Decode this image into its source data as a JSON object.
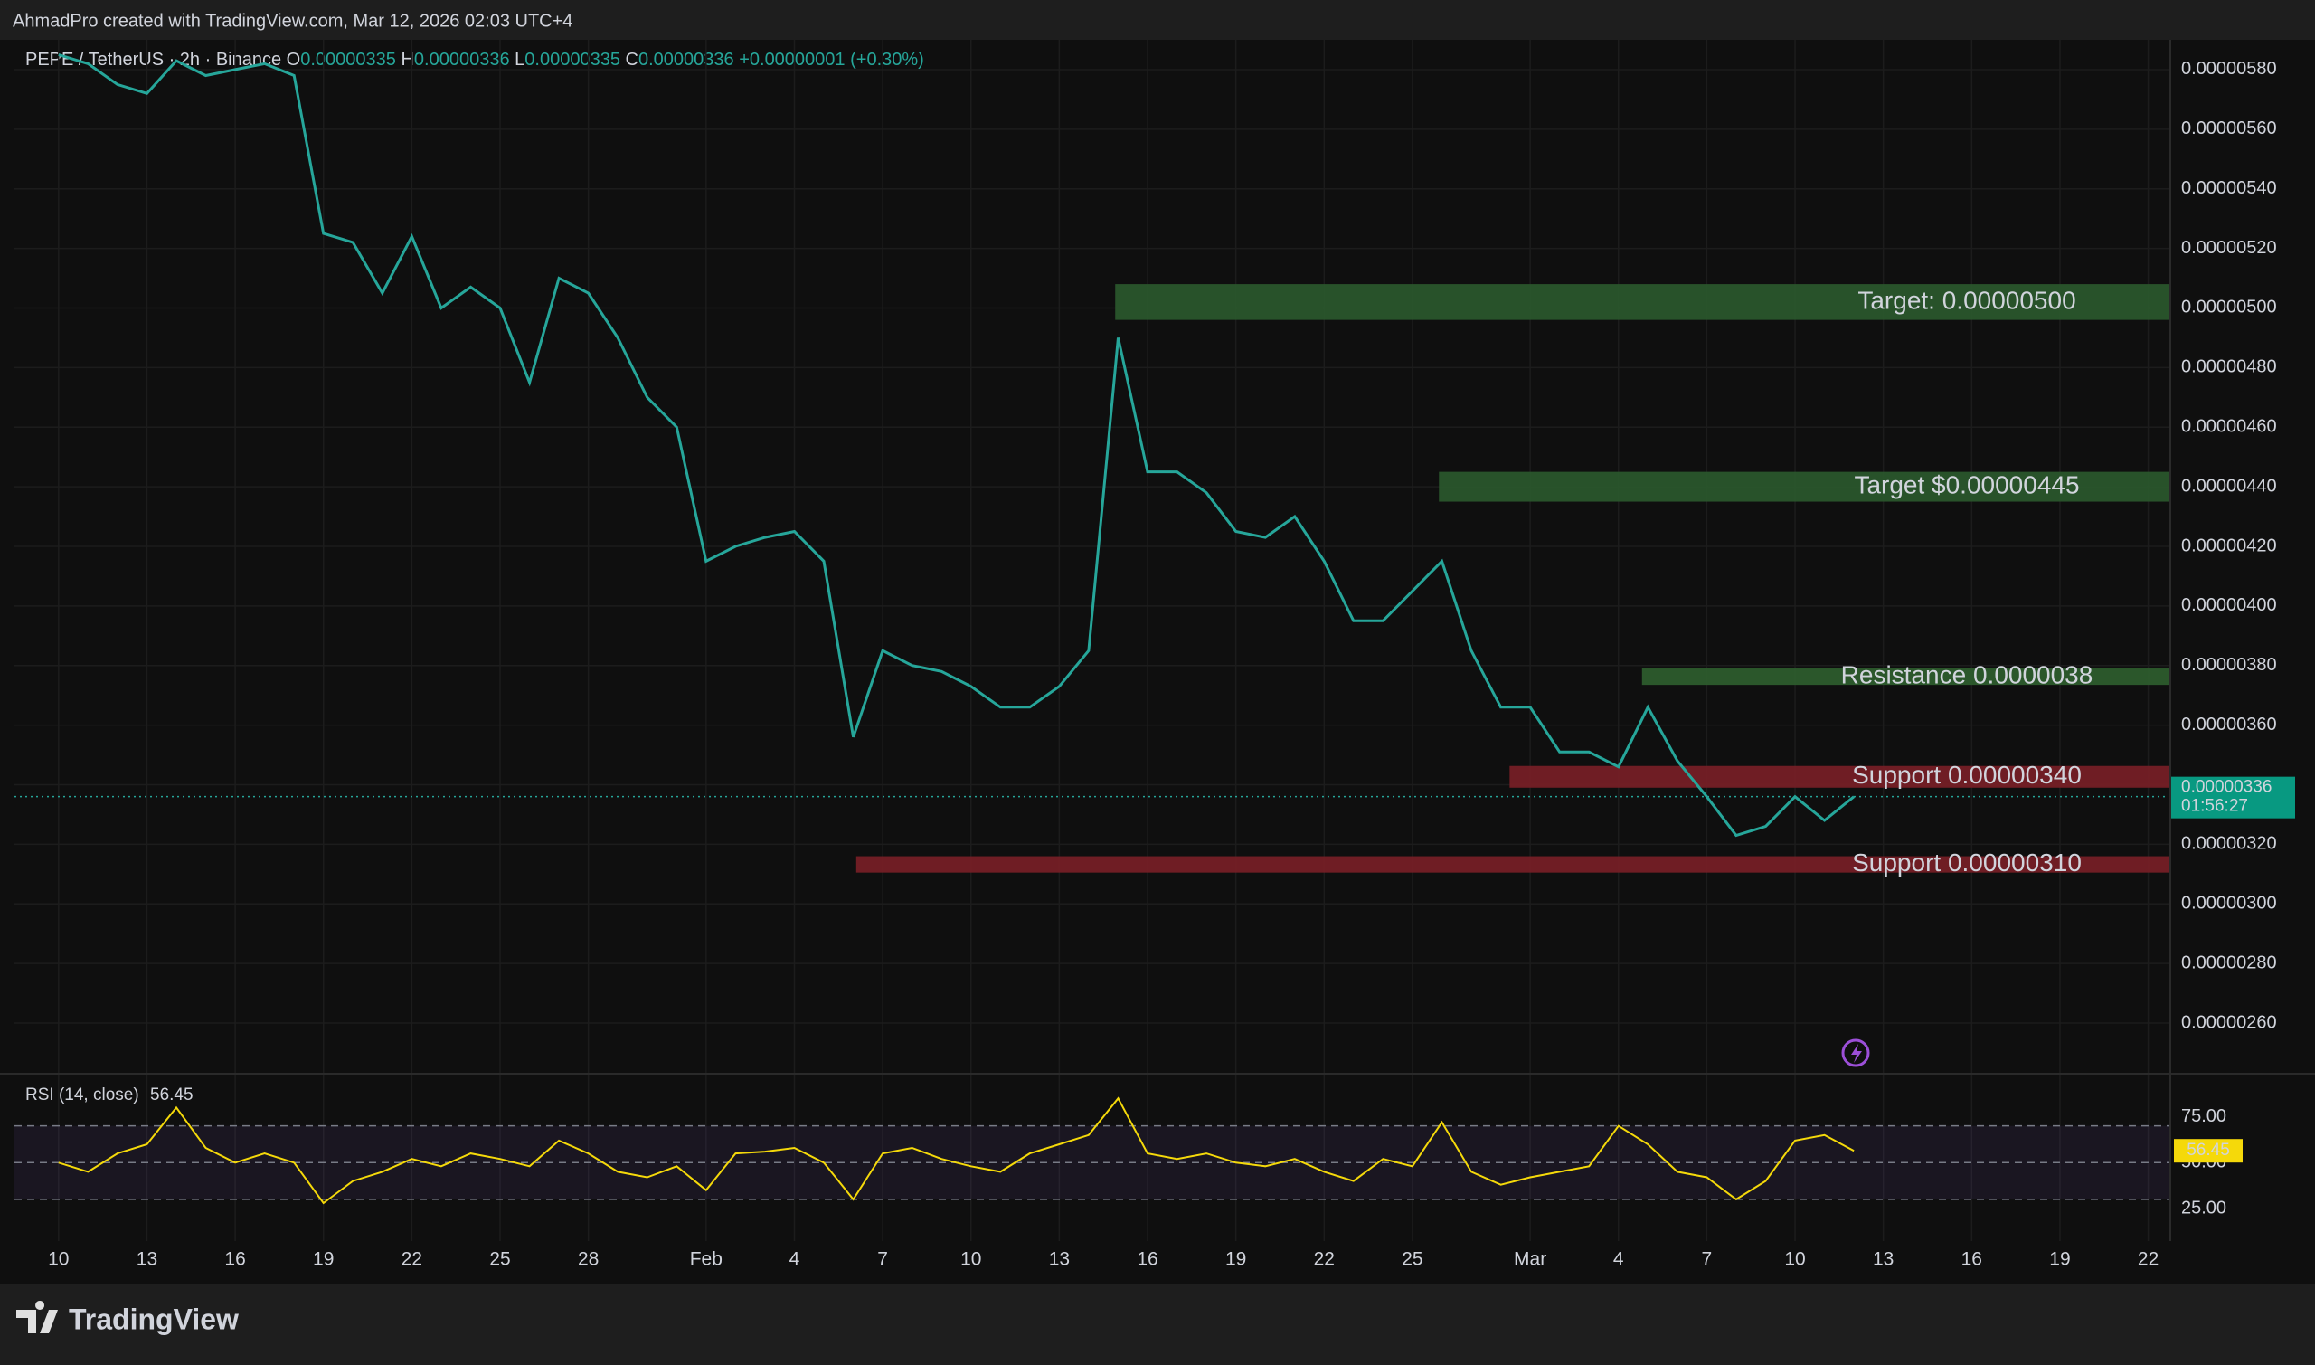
{
  "attribution": "AhmadPro created with TradingView.com, Mar 12, 2026 02:03 UTC+4",
  "header": {
    "symbol": "PEPE / TetherUS · 2h · Binance",
    "ohlc": [
      {
        "key": "O",
        "value": "0.00000335"
      },
      {
        "key": "H",
        "value": "0.00000336"
      },
      {
        "key": "L",
        "value": "0.00000335"
      },
      {
        "key": "C",
        "value": "0.00000336"
      }
    ],
    "change": "+0.00000001 (+0.30%)"
  },
  "brand": "TradingView",
  "chart_data": [
    {
      "type": "line",
      "color": "#26a69a",
      "countdown": "01:56:27",
      "x": [
        10,
        11,
        12,
        13,
        14,
        15,
        16,
        17,
        18,
        19,
        20,
        21,
        22,
        23,
        24,
        25,
        26,
        27,
        28,
        29,
        30,
        31,
        32,
        33,
        34,
        35,
        36,
        37,
        38,
        39,
        40,
        41,
        42,
        43,
        44,
        45,
        46,
        47,
        48,
        49,
        50,
        51,
        52,
        53,
        54,
        55,
        56,
        57,
        58,
        59,
        60,
        61,
        62,
        63,
        64,
        65,
        66,
        67,
        68,
        69,
        70,
        71
      ],
      "values": [
        5.85e-06,
        5.82e-06,
        5.75e-06,
        5.72e-06,
        5.83e-06,
        5.78e-06,
        5.8e-06,
        5.82e-06,
        5.78e-06,
        5.25e-06,
        5.22e-06,
        5.05e-06,
        5.24e-06,
        5e-06,
        5.07e-06,
        5e-06,
        4.75e-06,
        5.1e-06,
        5.05e-06,
        4.9e-06,
        4.7e-06,
        4.6e-06,
        4.15e-06,
        4.2e-06,
        4.23e-06,
        4.25e-06,
        4.15e-06,
        3.56e-06,
        3.85e-06,
        3.8e-06,
        3.78e-06,
        3.73e-06,
        3.66e-06,
        3.66e-06,
        3.73e-06,
        3.85e-06,
        4.9e-06,
        4.45e-06,
        4.45e-06,
        4.38e-06,
        4.25e-06,
        4.23e-06,
        4.3e-06,
        4.15e-06,
        3.95e-06,
        3.95e-06,
        4.05e-06,
        4.15e-06,
        3.85e-06,
        3.66e-06,
        3.66e-06,
        3.51e-06,
        3.51e-06,
        3.46e-06,
        3.66e-06,
        3.48e-06,
        3.36e-06,
        3.23e-06,
        3.26e-06,
        3.36e-06,
        3.28e-06,
        3.36e-06
      ],
      "xlim": [
        8.5,
        81.75
      ],
      "xticks": [
        {
          "value": 10,
          "label": "10"
        },
        {
          "value": 13,
          "label": "13"
        },
        {
          "value": 16,
          "label": "16"
        },
        {
          "value": 19,
          "label": "19"
        },
        {
          "value": 22,
          "label": "22"
        },
        {
          "value": 25,
          "label": "25"
        },
        {
          "value": 28,
          "label": "28"
        },
        {
          "value": 32,
          "label": "Feb"
        },
        {
          "value": 35,
          "label": "4"
        },
        {
          "value": 38,
          "label": "7"
        },
        {
          "value": 41,
          "label": "10"
        },
        {
          "value": 44,
          "label": "13"
        },
        {
          "value": 47,
          "label": "16"
        },
        {
          "value": 50,
          "label": "19"
        },
        {
          "value": 53,
          "label": "22"
        },
        {
          "value": 56,
          "label": "25"
        },
        {
          "value": 60,
          "label": "Mar"
        },
        {
          "value": 63,
          "label": "4"
        },
        {
          "value": 66,
          "label": "7"
        },
        {
          "value": 69,
          "label": "10"
        },
        {
          "value": 72,
          "label": "13"
        },
        {
          "value": 75,
          "label": "16"
        },
        {
          "value": 78,
          "label": "19"
        },
        {
          "value": 81,
          "label": "22"
        }
      ],
      "ylim": [
        2.43e-06,
        5.9e-06
      ],
      "yticks": [
        {
          "value": 5.8e-06,
          "label": "0.00000580"
        },
        {
          "value": 5.6e-06,
          "label": "0.00000560"
        },
        {
          "value": 5.4e-06,
          "label": "0.00000540"
        },
        {
          "value": 5.2e-06,
          "label": "0.00000520"
        },
        {
          "value": 5e-06,
          "label": "0.00000500"
        },
        {
          "value": 4.8e-06,
          "label": "0.00000480"
        },
        {
          "value": 4.6e-06,
          "label": "0.00000460"
        },
        {
          "value": 4.4e-06,
          "label": "0.00000440"
        },
        {
          "value": 4.2e-06,
          "label": "0.00000420"
        },
        {
          "value": 4e-06,
          "label": "0.00000400"
        },
        {
          "value": 3.8e-06,
          "label": "0.00000380"
        },
        {
          "value": 3.6e-06,
          "label": "0.00000360"
        },
        {
          "value": 3.4e-06,
          "label": "0.00000340"
        },
        {
          "value": 3.2e-06,
          "label": "0.00000320"
        },
        {
          "value": 3e-06,
          "label": "0.00000300"
        },
        {
          "value": 2.8e-06,
          "label": "0.00000280"
        },
        {
          "value": 2.6e-06,
          "label": "0.00000260"
        }
      ],
      "grid": true,
      "zones": [
        {
          "label": "Target: 0.00000500",
          "x0": 45.9,
          "top": 5.08e-06,
          "bottom": 4.96e-06,
          "color": "#2b5a2e",
          "label_color": "#ffffff"
        },
        {
          "label": "Target $0.00000445",
          "x0": 56.9,
          "top": 4.45e-06,
          "bottom": 4.35e-06,
          "color": "#2b5a2e",
          "label_color": "#ffffff"
        },
        {
          "label": "Resistance 0.0000038",
          "x0": 63.8,
          "top": 3.79e-06,
          "bottom": 3.735e-06,
          "color": "#2f5f2f",
          "label_color": "#b9e6b5"
        },
        {
          "label": "Support 0.00000340",
          "x0": 59.3,
          "top": 3.463e-06,
          "bottom": 3.39e-06,
          "color": "#7a1f27",
          "label_color": "#ffffff"
        },
        {
          "label": "Support 0.00000310",
          "x0": 37.1,
          "top": 3.16e-06,
          "bottom": 3.105e-06,
          "color": "#7a1f27",
          "label_color": "#ffffff"
        }
      ]
    },
    {
      "type": "line",
      "title": "RSI (14, close)",
      "color": "#f5d90a",
      "x": [
        10,
        11,
        12,
        13,
        14,
        15,
        16,
        17,
        18,
        19,
        20,
        21,
        22,
        23,
        24,
        25,
        26,
        27,
        28,
        29,
        30,
        31,
        32,
        33,
        34,
        35,
        36,
        37,
        38,
        39,
        40,
        41,
        42,
        43,
        44,
        45,
        46,
        47,
        48,
        49,
        50,
        51,
        52,
        53,
        54,
        55,
        56,
        57,
        58,
        59,
        60,
        61,
        62,
        63,
        64,
        65,
        66,
        67,
        68,
        69,
        70,
        71
      ],
      "values": [
        50,
        45,
        55,
        60,
        80,
        58,
        50,
        55,
        50,
        28,
        40,
        45,
        52,
        48,
        55,
        52,
        48,
        62,
        55,
        45,
        42,
        48,
        35,
        55,
        56,
        58,
        50,
        30,
        55,
        58,
        52,
        48,
        45,
        55,
        60,
        65,
        85,
        55,
        52,
        55,
        50,
        48,
        52,
        45,
        40,
        52,
        48,
        72,
        45,
        38,
        42,
        45,
        48,
        70,
        60,
        45,
        42,
        30,
        40,
        62,
        65,
        56.45
      ],
      "xlim": [
        8.5,
        81.75
      ],
      "ylim": [
        7.3,
        98.4
      ],
      "yticks": [
        {
          "value": 75,
          "label": "75.00"
        },
        {
          "value": 50,
          "label": "50.00"
        },
        {
          "value": 25,
          "label": "25.00"
        }
      ],
      "levels": [
        30,
        50,
        70
      ]
    }
  ]
}
